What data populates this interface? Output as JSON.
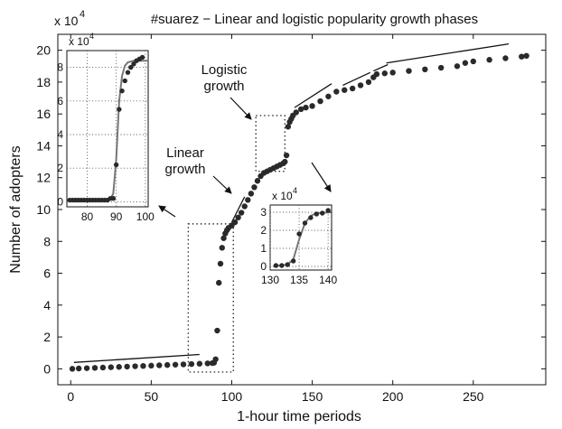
{
  "chart_data": {
    "type": "scatter",
    "title": "#suarez  − Linear and logistic popularity growth phases",
    "xlabel": "1-hour time periods",
    "ylabel": "Number of adopters",
    "y_multiplier": "x 10",
    "y_exponent": "4",
    "xlim": [
      -8,
      295
    ],
    "ylim": [
      -1,
      21
    ],
    "xticks": [
      "0",
      "50",
      "100",
      "150",
      "200",
      "250"
    ],
    "yticks": [
      "0",
      "2",
      "4",
      "6",
      "8",
      "10",
      "12",
      "14",
      "16",
      "18",
      "20"
    ],
    "grid": false,
    "annotations": {
      "logistic": [
        "Logistic",
        "growth"
      ],
      "linear": [
        "Linear",
        "growth"
      ]
    },
    "series": [
      {
        "marker": "dot",
        "color": "#2a2a2a",
        "points": [
          [
            1,
            0.0
          ],
          [
            5,
            0.02
          ],
          [
            10,
            0.04
          ],
          [
            15,
            0.06
          ],
          [
            20,
            0.08
          ],
          [
            25,
            0.1
          ],
          [
            30,
            0.12
          ],
          [
            35,
            0.14
          ],
          [
            40,
            0.16
          ],
          [
            45,
            0.18
          ],
          [
            50,
            0.2
          ],
          [
            55,
            0.22
          ],
          [
            60,
            0.24
          ],
          [
            65,
            0.26
          ],
          [
            70,
            0.28
          ],
          [
            75,
            0.3
          ],
          [
            80,
            0.32
          ],
          [
            85,
            0.34
          ],
          [
            88,
            0.36
          ],
          [
            89,
            0.38
          ],
          [
            90,
            0.6
          ],
          [
            91,
            2.4
          ],
          [
            92,
            5.4
          ],
          [
            93,
            6.6
          ],
          [
            94,
            7.6
          ],
          [
            95,
            8.2
          ],
          [
            96,
            8.5
          ],
          [
            97,
            8.7
          ],
          [
            98,
            8.85
          ],
          [
            100,
            9.0
          ],
          [
            102,
            9.2
          ],
          [
            104,
            9.5
          ],
          [
            106,
            9.8
          ],
          [
            108,
            10.2
          ],
          [
            110,
            10.6
          ],
          [
            112,
            11.0
          ],
          [
            114,
            11.4
          ],
          [
            116,
            11.8
          ],
          [
            118,
            12.1
          ],
          [
            120,
            12.3
          ],
          [
            122,
            12.4
          ],
          [
            124,
            12.5
          ],
          [
            126,
            12.6
          ],
          [
            128,
            12.7
          ],
          [
            130,
            12.8
          ],
          [
            132,
            12.9
          ],
          [
            133,
            13.0
          ],
          [
            134,
            13.4
          ],
          [
            135,
            15.2
          ],
          [
            136,
            15.5
          ],
          [
            137,
            15.7
          ],
          [
            138,
            15.9
          ],
          [
            140,
            16.1
          ],
          [
            143,
            16.3
          ],
          [
            146,
            16.4
          ],
          [
            150,
            16.5
          ],
          [
            155,
            16.8
          ],
          [
            160,
            17.1
          ],
          [
            165,
            17.4
          ],
          [
            170,
            17.5
          ],
          [
            175,
            17.6
          ],
          [
            180,
            17.8
          ],
          [
            185,
            18.0
          ],
          [
            188,
            18.3
          ],
          [
            190,
            18.5
          ],
          [
            195,
            18.55
          ],
          [
            200,
            18.6
          ],
          [
            210,
            18.7
          ],
          [
            220,
            18.8
          ],
          [
            230,
            18.9
          ],
          [
            240,
            19.0
          ],
          [
            245,
            19.2
          ],
          [
            250,
            19.3
          ],
          [
            260,
            19.4
          ],
          [
            270,
            19.5
          ],
          [
            280,
            19.6
          ],
          [
            283,
            19.65
          ]
        ]
      }
    ],
    "trend_lines": [
      [
        [
          2,
          0.4
        ],
        [
          80,
          0.9
        ]
      ],
      [
        [
          100,
          9.2
        ],
        [
          108,
          10.8
        ]
      ],
      [
        [
          139,
          16.4
        ],
        [
          162,
          17.9
        ]
      ],
      [
        [
          169,
          17.8
        ],
        [
          186,
          18.6
        ]
      ],
      [
        [
          188,
          18.7
        ],
        [
          197,
          19.1
        ]
      ],
      [
        [
          196,
          19.2
        ],
        [
          272,
          20.4
        ]
      ]
    ],
    "boxes": [
      [
        [
          73,
          -0.2
        ],
        [
          101,
          9.1
        ]
      ],
      [
        [
          115,
          12.4
        ],
        [
          133,
          15.9
        ]
      ]
    ],
    "insets": [
      {
        "y_multiplier": "x 10",
        "y_exponent": "4",
        "xlim": [
          73,
          101
        ],
        "ylim": [
          -0.3,
          9.0
        ],
        "xticks": [
          "80",
          "90",
          "100"
        ],
        "yticks": [
          "0",
          "2",
          "4",
          "6",
          "8"
        ],
        "grid": true,
        "fit_color": "#777777",
        "points": [
          [
            74,
            0.1
          ],
          [
            75,
            0.1
          ],
          [
            76,
            0.1
          ],
          [
            77,
            0.1
          ],
          [
            78,
            0.1
          ],
          [
            79,
            0.1
          ],
          [
            80,
            0.1
          ],
          [
            81,
            0.1
          ],
          [
            82,
            0.1
          ],
          [
            83,
            0.1
          ],
          [
            84,
            0.1
          ],
          [
            85,
            0.1
          ],
          [
            86,
            0.1
          ],
          [
            87,
            0.1
          ],
          [
            88,
            0.2
          ],
          [
            89,
            0.2
          ],
          [
            90,
            2.2
          ],
          [
            91,
            5.5
          ],
          [
            92,
            6.6
          ],
          [
            93,
            7.2
          ],
          [
            94,
            7.7
          ],
          [
            95,
            8.0
          ],
          [
            96,
            8.2
          ],
          [
            97,
            8.4
          ],
          [
            98,
            8.5
          ],
          [
            99,
            8.6
          ]
        ],
        "fit": [
          [
            74,
            0.1
          ],
          [
            88,
            0.15
          ],
          [
            89,
            0.5
          ],
          [
            90,
            2.5
          ],
          [
            91,
            6.0
          ],
          [
            92,
            7.5
          ],
          [
            93,
            8.1
          ],
          [
            94,
            8.3
          ],
          [
            96,
            8.4
          ],
          [
            101,
            8.4
          ]
        ]
      },
      {
        "y_multiplier": "x 10",
        "y_exponent": "4",
        "xlim": [
          130,
          140.6
        ],
        "ylim": [
          -0.2,
          3.4
        ],
        "xticks": [
          "130",
          "135",
          "140"
        ],
        "yticks": [
          "0",
          "1",
          "2",
          "3"
        ],
        "grid": true,
        "fit_color": "#777777",
        "points": [
          [
            131,
            0.05
          ],
          [
            132,
            0.05
          ],
          [
            133,
            0.1
          ],
          [
            134,
            0.3
          ],
          [
            135,
            1.8
          ],
          [
            136,
            2.4
          ],
          [
            137,
            2.7
          ],
          [
            138,
            2.9
          ],
          [
            139,
            2.95
          ],
          [
            140,
            3.1
          ]
        ],
        "fit": [
          [
            130.5,
            0.0
          ],
          [
            133,
            0.1
          ],
          [
            134,
            0.4
          ],
          [
            135,
            1.5
          ],
          [
            136,
            2.4
          ],
          [
            137,
            2.8
          ],
          [
            138,
            2.95
          ],
          [
            140.5,
            3.0
          ]
        ]
      }
    ]
  }
}
